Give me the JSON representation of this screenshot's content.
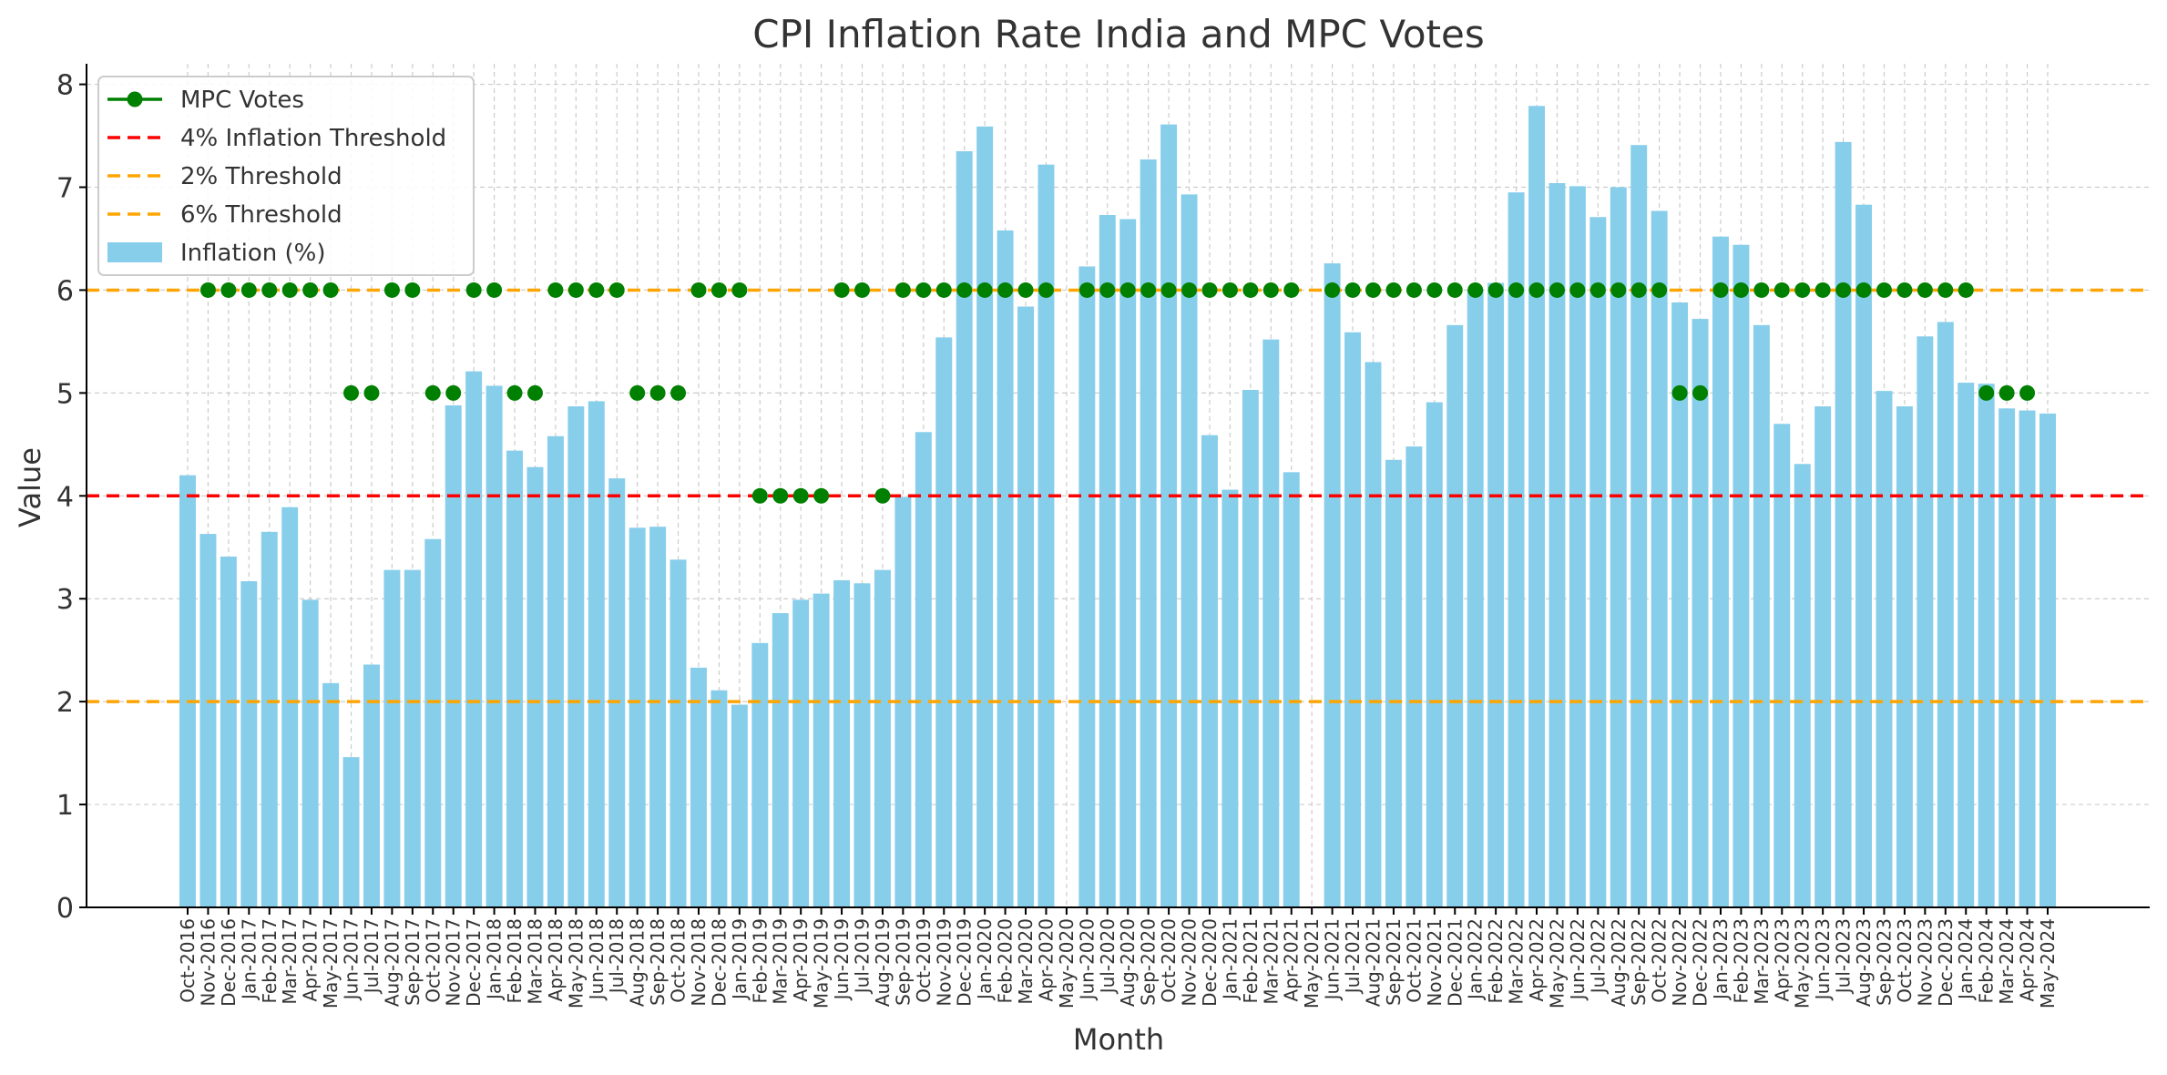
{
  "chart_data": {
    "type": "bar",
    "title": "CPI Inflation Rate India and MPC Votes",
    "xlabel": "Month",
    "ylabel": "Value",
    "ylim": [
      0,
      8.2
    ],
    "yticks": [
      "0",
      "1",
      "2",
      "3",
      "4",
      "5",
      "6",
      "7",
      "8"
    ],
    "grid": true,
    "legend_position": "top-left",
    "categories": [
      "Oct-2016",
      "Nov-2016",
      "Dec-2016",
      "Jan-2017",
      "Feb-2017",
      "Mar-2017",
      "Apr-2017",
      "May-2017",
      "Jun-2017",
      "Jul-2017",
      "Aug-2017",
      "Sep-2017",
      "Oct-2017",
      "Nov-2017",
      "Dec-2017",
      "Jan-2018",
      "Feb-2018",
      "Mar-2018",
      "Apr-2018",
      "May-2018",
      "Jun-2018",
      "Jul-2018",
      "Aug-2018",
      "Sep-2018",
      "Oct-2018",
      "Nov-2018",
      "Dec-2018",
      "Jan-2019",
      "Feb-2019",
      "Mar-2019",
      "Apr-2019",
      "May-2019",
      "Jun-2019",
      "Jul-2019",
      "Aug-2019",
      "Sep-2019",
      "Oct-2019",
      "Nov-2019",
      "Dec-2019",
      "Jan-2020",
      "Feb-2020",
      "Mar-2020",
      "Apr-2020",
      "May-2020",
      "Jun-2020",
      "Jul-2020",
      "Aug-2020",
      "Sep-2020",
      "Oct-2020",
      "Nov-2020",
      "Dec-2020",
      "Jan-2021",
      "Feb-2021",
      "Mar-2021",
      "Apr-2021",
      "May-2021",
      "Jun-2021",
      "Jul-2021",
      "Aug-2021",
      "Sep-2021",
      "Oct-2021",
      "Nov-2021",
      "Dec-2021",
      "Jan-2022",
      "Feb-2022",
      "Mar-2022",
      "Apr-2022",
      "May-2022",
      "Jun-2022",
      "Jul-2022",
      "Aug-2022",
      "Sep-2022",
      "Oct-2022",
      "Nov-2022",
      "Dec-2022",
      "Jan-2023",
      "Feb-2023",
      "Mar-2023",
      "Apr-2023",
      "May-2023",
      "Jun-2023",
      "Jul-2023",
      "Aug-2023",
      "Sep-2023",
      "Oct-2023",
      "Nov-2023",
      "Dec-2023",
      "Jan-2024",
      "Feb-2024",
      "Mar-2024",
      "Apr-2024",
      "May-2024"
    ],
    "series": [
      {
        "name": "Inflation (%)",
        "type": "bar",
        "color": "#87CEEB",
        "values": [
          4.2,
          3.63,
          3.41,
          3.17,
          3.65,
          3.89,
          2.99,
          2.18,
          1.46,
          2.36,
          3.28,
          3.28,
          3.58,
          4.88,
          5.21,
          5.07,
          4.44,
          4.28,
          4.58,
          4.87,
          4.92,
          4.17,
          3.69,
          3.7,
          3.38,
          2.33,
          2.11,
          1.97,
          2.57,
          2.86,
          2.99,
          3.05,
          3.18,
          3.15,
          3.28,
          3.99,
          4.62,
          5.54,
          7.35,
          7.59,
          6.58,
          5.84,
          7.22,
          null,
          6.23,
          6.73,
          6.69,
          7.27,
          7.61,
          6.93,
          4.59,
          4.06,
          5.03,
          5.52,
          4.23,
          null,
          6.26,
          5.59,
          5.3,
          4.35,
          4.48,
          4.91,
          5.66,
          6.01,
          6.07,
          6.95,
          7.79,
          7.04,
          7.01,
          6.71,
          7.0,
          7.41,
          6.77,
          5.88,
          5.72,
          6.52,
          6.44,
          5.66,
          4.7,
          4.31,
          4.87,
          7.44,
          6.83,
          5.02,
          4.87,
          5.55,
          5.69,
          5.1,
          5.09,
          4.85,
          4.83,
          4.8
        ]
      },
      {
        "name": "MPC Votes",
        "type": "line-marker",
        "color": "#008000",
        "values": [
          null,
          6,
          6,
          6,
          6,
          6,
          6,
          6,
          5,
          5,
          6,
          6,
          5,
          5,
          6,
          6,
          5,
          5,
          6,
          6,
          6,
          6,
          5,
          5,
          5,
          6,
          6,
          6,
          4,
          4,
          4,
          4,
          6,
          6,
          4,
          6,
          6,
          6,
          6,
          6,
          6,
          6,
          6,
          null,
          6,
          6,
          6,
          6,
          6,
          6,
          6,
          6,
          6,
          6,
          6,
          null,
          6,
          6,
          6,
          6,
          6,
          6,
          6,
          6,
          6,
          6,
          6,
          6,
          6,
          6,
          6,
          6,
          6,
          5,
          5,
          6,
          6,
          6,
          6,
          6,
          6,
          6,
          6,
          6,
          6,
          6,
          6,
          6,
          5,
          5,
          5,
          null
        ]
      }
    ],
    "reference_lines": [
      {
        "name": "4% Inflation Threshold",
        "value": 4,
        "color": "#ff0000"
      },
      {
        "name": "2% Threshold",
        "value": 2,
        "color": "#FFA500"
      },
      {
        "name": "6% Threshold",
        "value": 6,
        "color": "#FFA500"
      }
    ],
    "legend": [
      {
        "label": "MPC Votes",
        "kind": "line-marker",
        "color": "#008000"
      },
      {
        "label": "4% Inflation Threshold",
        "kind": "dashed",
        "color": "#ff0000"
      },
      {
        "label": "2% Threshold",
        "kind": "dashed",
        "color": "#FFA500"
      },
      {
        "label": "6% Threshold",
        "kind": "dashed",
        "color": "#FFA500"
      },
      {
        "label": "Inflation (%)",
        "kind": "patch",
        "color": "#87CEEB"
      }
    ]
  }
}
